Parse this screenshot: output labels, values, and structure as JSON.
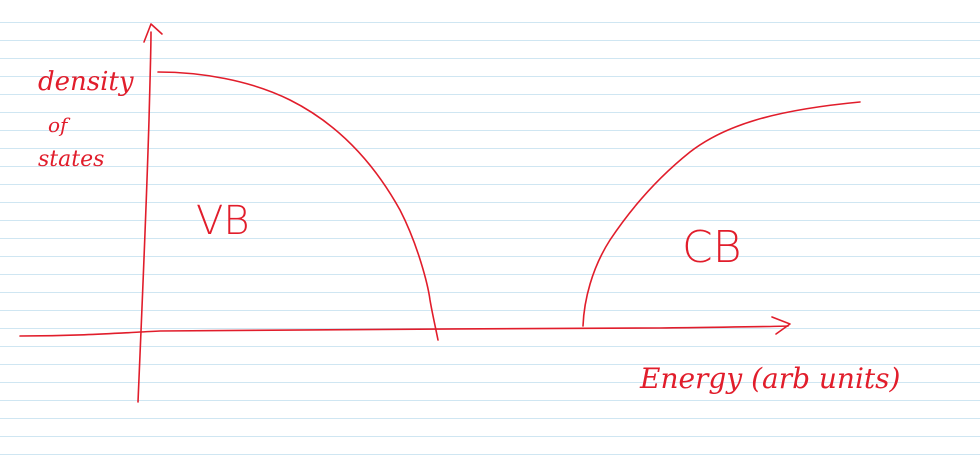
{
  "diagram": {
    "ink_color": "#e11d2b",
    "rule_color": "#cfe6f2",
    "y_axis_label_lines": [
      "density",
      "of",
      "states"
    ],
    "x_axis_label": "Energy (arb units)",
    "regions": {
      "valence_band": "VB",
      "conduction_band": "CB"
    }
  }
}
